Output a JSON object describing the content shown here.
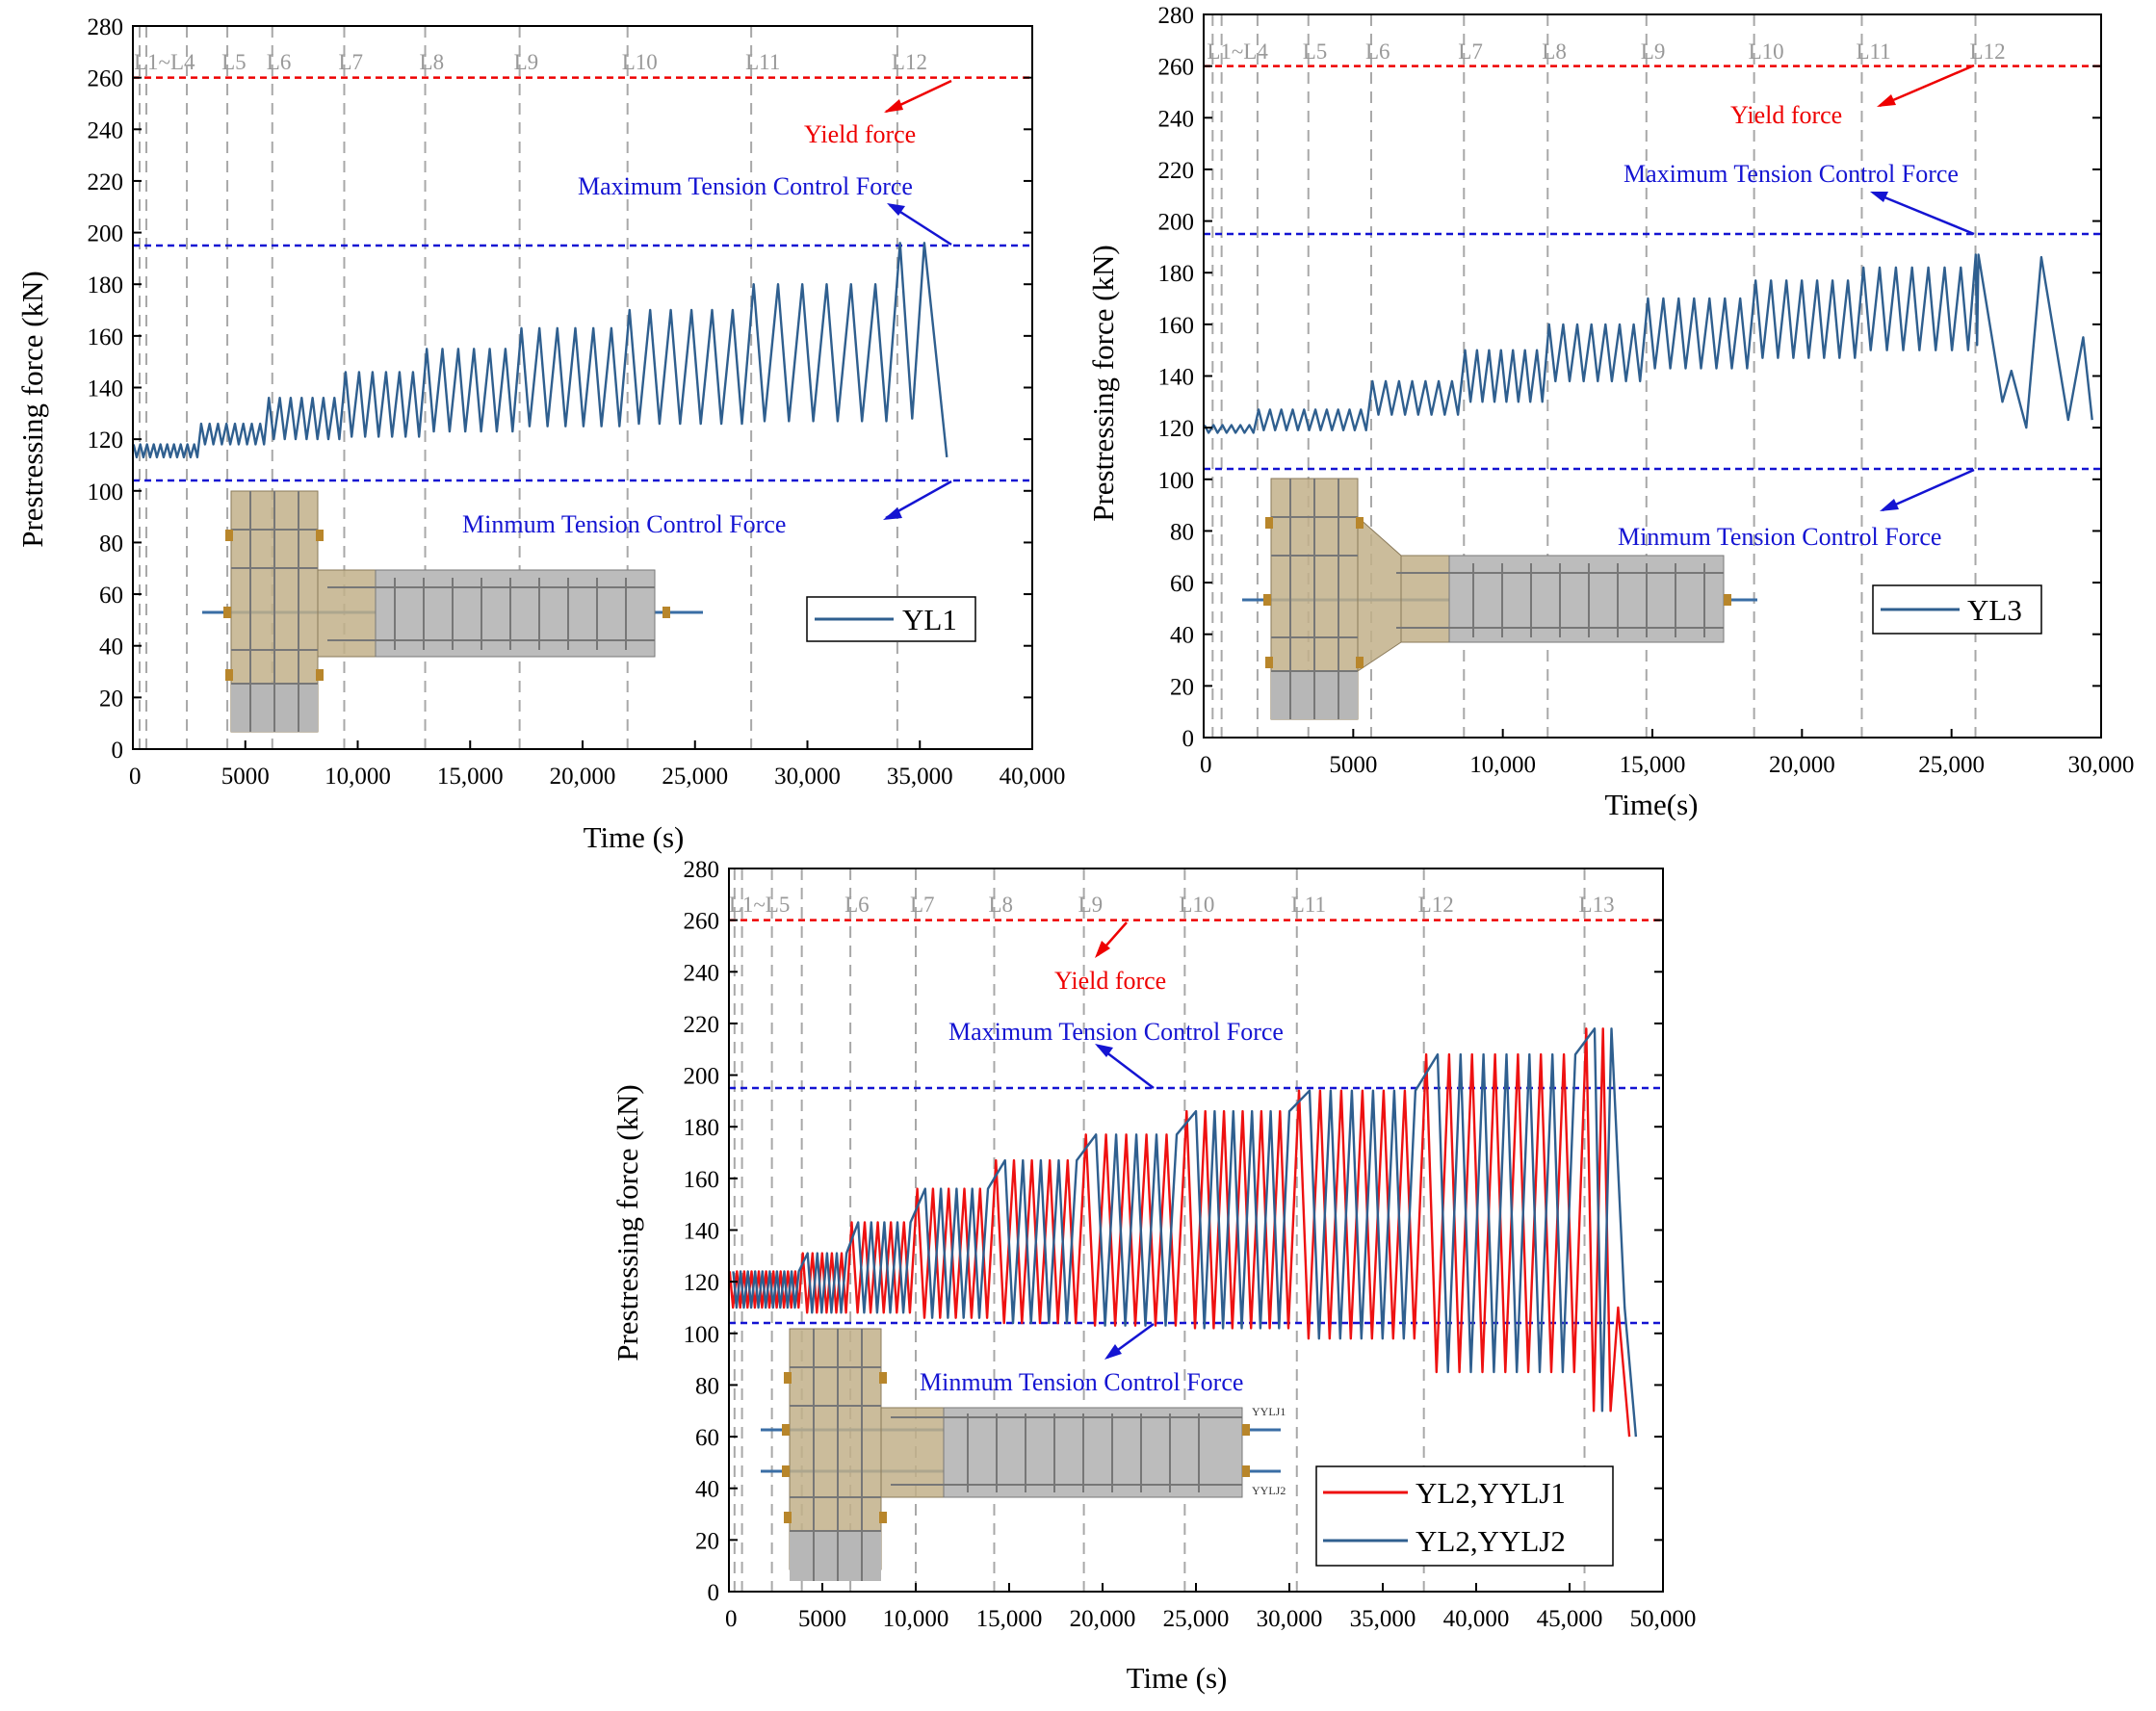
{
  "chart_data": [
    {
      "id": "c1",
      "type": "line",
      "xlabel": "Time (s)",
      "ylabel": "Prestressing force (kN)",
      "xlim": [
        0,
        40000
      ],
      "ylim": [
        0,
        280
      ],
      "xticks": [
        0,
        5000,
        10000,
        15000,
        20000,
        25000,
        30000,
        35000,
        40000
      ],
      "xtick_labels": [
        "0",
        "5000",
        "10,000",
        "15,000",
        "20,000",
        "25,000",
        "30,000",
        "35,000",
        "40,000"
      ],
      "yticks": [
        0,
        20,
        40,
        60,
        80,
        100,
        120,
        140,
        160,
        180,
        200,
        220,
        240,
        260,
        280
      ],
      "ytick_labels": [
        "0",
        "20",
        "40",
        "60",
        "80",
        "100",
        "120",
        "140",
        "160",
        "180",
        "200",
        "220",
        "240",
        "260",
        "280"
      ],
      "levels": [
        {
          "label": "L1~L4",
          "x": 300
        },
        {
          "label": "",
          "x": 600
        },
        {
          "label": "",
          "x": 2400
        },
        {
          "label": "L5",
          "x": 4200
        },
        {
          "label": "L6",
          "x": 6200
        },
        {
          "label": "L7",
          "x": 9400
        },
        {
          "label": "L8",
          "x": 13000
        },
        {
          "label": "L9",
          "x": 17200
        },
        {
          "label": "L10",
          "x": 22000
        },
        {
          "label": "L11",
          "x": 27500
        },
        {
          "label": "L12",
          "x": 34000
        }
      ],
      "reference_lines": [
        {
          "name": "yield",
          "value": 260,
          "color": "#ee0000"
        },
        {
          "name": "max",
          "value": 195,
          "color": "#1414d2"
        },
        {
          "name": "min",
          "value": 104,
          "color": "#1414d2"
        }
      ],
      "annotations": {
        "yield": "Yield force",
        "max": "Maximum Tension Control Force",
        "min": "Minmum Tension Control Force"
      },
      "segments": [
        {
          "t0": 0,
          "t1": 3000,
          "n": 10,
          "lo": 113,
          "hi": 118
        },
        {
          "t0": 3000,
          "t1": 6000,
          "n": 8,
          "lo": 118,
          "hi": 126
        },
        {
          "t0": 6000,
          "t1": 9400,
          "n": 7,
          "lo": 120,
          "hi": 136
        },
        {
          "t0": 9400,
          "t1": 13000,
          "n": 6,
          "lo": 121,
          "hi": 146
        },
        {
          "t0": 13000,
          "t1": 17200,
          "n": 6,
          "lo": 123,
          "hi": 155
        },
        {
          "t0": 17200,
          "t1": 22000,
          "n": 6,
          "lo": 125,
          "hi": 163
        },
        {
          "t0": 22000,
          "t1": 27500,
          "n": 6,
          "lo": 126,
          "hi": 170
        },
        {
          "t0": 27500,
          "t1": 34000,
          "n": 6,
          "lo": 127,
          "hi": 180
        },
        {
          "t0": 34000,
          "t1": 35200,
          "n": 1,
          "lo": 128,
          "hi": 196
        }
      ],
      "tail": [
        [
          35200,
          196
        ],
        [
          36200,
          113
        ]
      ],
      "series": [
        {
          "name": "YL1",
          "color": "#2f5f8f"
        }
      ],
      "legend_position": "lower-right"
    },
    {
      "id": "c2",
      "type": "line",
      "xlabel": "Time(s)",
      "ylabel": "Prestressing force (kN)",
      "xlim": [
        0,
        30000
      ],
      "ylim": [
        0,
        280
      ],
      "xticks": [
        0,
        5000,
        10000,
        15000,
        20000,
        25000,
        30000
      ],
      "xtick_labels": [
        "0",
        "5000",
        "10,000",
        "15,000",
        "20,000",
        "25,000",
        "30,000"
      ],
      "yticks": [
        0,
        20,
        40,
        60,
        80,
        100,
        120,
        140,
        160,
        180,
        200,
        220,
        240,
        260,
        280
      ],
      "ytick_labels": [
        "0",
        "20",
        "40",
        "60",
        "80",
        "100",
        "120",
        "140",
        "160",
        "180",
        "200",
        "220",
        "240",
        "260",
        "280"
      ],
      "levels": [
        {
          "label": "L1~L4",
          "x": 300
        },
        {
          "label": "",
          "x": 600
        },
        {
          "label": "",
          "x": 1800
        },
        {
          "label": "L5",
          "x": 3500
        },
        {
          "label": "L6",
          "x": 5600
        },
        {
          "label": "L7",
          "x": 8700
        },
        {
          "label": "L8",
          "x": 11500
        },
        {
          "label": "L9",
          "x": 14800
        },
        {
          "label": "L10",
          "x": 18400
        },
        {
          "label": "L11",
          "x": 22000
        },
        {
          "label": "L12",
          "x": 25800
        }
      ],
      "reference_lines": [
        {
          "name": "yield",
          "value": 260,
          "color": "#ee0000"
        },
        {
          "name": "max",
          "value": 195,
          "color": "#1414d2"
        },
        {
          "name": "min",
          "value": 104,
          "color": "#1414d2"
        }
      ],
      "annotations": {
        "yield": "Yield force",
        "max": "Maximum Tension Control Force",
        "min": "Minmum Tension Control Force"
      },
      "segments": [
        {
          "t0": 0,
          "t1": 1800,
          "n": 6,
          "lo": 118,
          "hi": 121
        },
        {
          "t0": 1800,
          "t1": 5600,
          "n": 10,
          "lo": 119,
          "hi": 127
        },
        {
          "t0": 5600,
          "t1": 8700,
          "n": 7,
          "lo": 125,
          "hi": 138
        },
        {
          "t0": 8700,
          "t1": 11500,
          "n": 7,
          "lo": 130,
          "hi": 150
        },
        {
          "t0": 11500,
          "t1": 14800,
          "n": 7,
          "lo": 138,
          "hi": 160
        },
        {
          "t0": 14800,
          "t1": 18400,
          "n": 7,
          "lo": 143,
          "hi": 170
        },
        {
          "t0": 18400,
          "t1": 22000,
          "n": 7,
          "lo": 147,
          "hi": 177
        },
        {
          "t0": 22000,
          "t1": 25800,
          "n": 7,
          "lo": 150,
          "hi": 182
        },
        {
          "t0": 25800,
          "t1": 25900,
          "n": 1,
          "lo": 152,
          "hi": 187
        }
      ],
      "tail": [
        [
          25900,
          187
        ],
        [
          26700,
          130
        ],
        [
          27000,
          142
        ],
        [
          27500,
          120
        ],
        [
          28000,
          186
        ],
        [
          28900,
          123
        ],
        [
          29400,
          155
        ],
        [
          29700,
          123
        ]
      ],
      "series": [
        {
          "name": "YL3",
          "color": "#2f5f8f"
        }
      ],
      "legend_position": "lower-right"
    },
    {
      "id": "c3",
      "type": "line",
      "xlabel": "Time (s)",
      "ylabel": "Prestressing force (kN)",
      "xlim": [
        0,
        50000
      ],
      "ylim": [
        0,
        280
      ],
      "xticks": [
        0,
        5000,
        10000,
        15000,
        20000,
        25000,
        30000,
        35000,
        40000,
        45000,
        50000
      ],
      "xtick_labels": [
        "0",
        "5000",
        "10,000",
        "15,000",
        "20,000",
        "25,000",
        "30,000",
        "35,000",
        "40,000",
        "45,000",
        "50,000"
      ],
      "yticks": [
        0,
        20,
        40,
        60,
        80,
        100,
        120,
        140,
        160,
        180,
        200,
        220,
        240,
        260,
        280
      ],
      "ytick_labels": [
        "0",
        "20",
        "40",
        "60",
        "80",
        "100",
        "120",
        "140",
        "160",
        "180",
        "200",
        "220",
        "240",
        "260",
        "280"
      ],
      "levels": [
        {
          "label": "L1~L5",
          "x": 300
        },
        {
          "label": "",
          "x": 700
        },
        {
          "label": "",
          "x": 2300
        },
        {
          "label": "",
          "x": 3900
        },
        {
          "label": "L6",
          "x": 6500
        },
        {
          "label": "L7",
          "x": 10000
        },
        {
          "label": "L8",
          "x": 14200
        },
        {
          "label": "L9",
          "x": 19000
        },
        {
          "label": "L10",
          "x": 24400
        },
        {
          "label": "L11",
          "x": 30400
        },
        {
          "label": "L12",
          "x": 37200
        },
        {
          "label": "L13",
          "x": 45800
        }
      ],
      "reference_lines": [
        {
          "name": "yield",
          "value": 260,
          "color": "#ee0000"
        },
        {
          "name": "max",
          "value": 195,
          "color": "#1414d2"
        },
        {
          "name": "min",
          "value": 104,
          "color": "#1414d2"
        }
      ],
      "annotations": {
        "yield": "Yield force",
        "max": "Maximum Tension Control Force",
        "min": "Minmum Tension Control Force"
      },
      "specimen_labels": [
        "YYLJ1",
        "YYLJ2"
      ],
      "segments": [
        {
          "t0": 0,
          "t1": 3900,
          "n": 10,
          "lo": 110,
          "hi": 124
        },
        {
          "t0": 3900,
          "t1": 6500,
          "n": 5,
          "lo": 108,
          "hi": 131
        },
        {
          "t0": 6500,
          "t1": 10000,
          "n": 5,
          "lo": 108,
          "hi": 143
        },
        {
          "t0": 10000,
          "t1": 14200,
          "n": 5,
          "lo": 106,
          "hi": 156
        },
        {
          "t0": 14200,
          "t1": 19000,
          "n": 5,
          "lo": 104,
          "hi": 167
        },
        {
          "t0": 19000,
          "t1": 24400,
          "n": 5,
          "lo": 103,
          "hi": 177
        },
        {
          "t0": 24400,
          "t1": 30400,
          "n": 6,
          "lo": 102,
          "hi": 186
        },
        {
          "t0": 30400,
          "t1": 37200,
          "n": 6,
          "lo": 98,
          "hi": 194
        },
        {
          "t0": 37200,
          "t1": 45800,
          "n": 7,
          "lo": 85,
          "hi": 208
        },
        {
          "t0": 45800,
          "t1": 47600,
          "n": 2,
          "lo": 70,
          "hi": 218
        }
      ],
      "tail": [
        [
          47600,
          110
        ],
        [
          48200,
          60
        ]
      ],
      "series": [
        {
          "name": "YL2,YYLJ1",
          "color": "#ee1111",
          "phase": 0,
          "pair": 0.55
        },
        {
          "name": "YL2,YYLJ2",
          "color": "#2f5f8f",
          "phase": 0.5,
          "pair": 0.45
        }
      ],
      "legend_position": "lower-right"
    }
  ]
}
